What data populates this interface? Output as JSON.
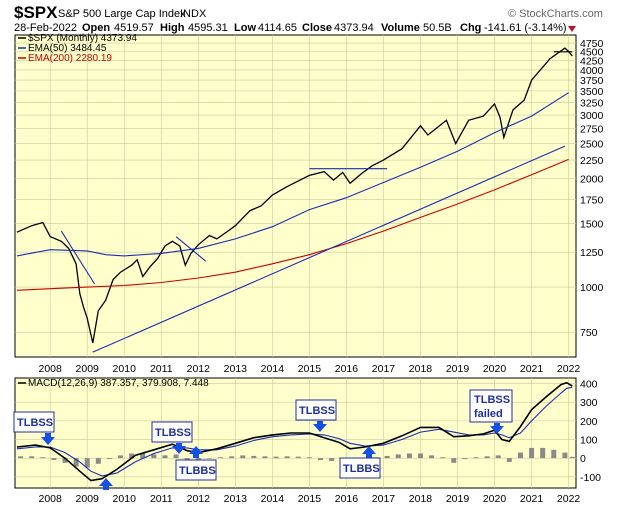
{
  "header": {
    "symbol": "$SPX",
    "name": "S&P 500 Large Cap Index",
    "exchange": "INDX",
    "date": "28-Feb-2022",
    "open_label": "Open",
    "open": "4519.57",
    "high_label": "High",
    "high": "4595.31",
    "low_label": "Low",
    "low": "4114.65",
    "close_label": "Close",
    "close": "4373.94",
    "volume_label": "Volume",
    "volume": "50.5B",
    "chg_label": "Chg",
    "chg": "-141.61 (-3.14%)",
    "watermark": "© StockCharts.com"
  },
  "chart_data": [
    {
      "type": "line",
      "legend": [
        {
          "label": "$SPX (Monthly) 4373.94",
          "color": "#000000"
        },
        {
          "label": "EMA(50) 3484.45",
          "color": "#1a2db0"
        },
        {
          "label": "EMA(200) 2280.19",
          "color": "#cc0000"
        }
      ],
      "x_ticks": [
        "2008",
        "2009",
        "2010",
        "2011",
        "2012",
        "2013",
        "2014",
        "2015",
        "2016",
        "2017",
        "2018",
        "2019",
        "2020",
        "2021",
        "2022"
      ],
      "y_ticks": [
        750,
        1000,
        1250,
        1500,
        1750,
        2000,
        2250,
        2500,
        2750,
        3000,
        3250,
        3500,
        3750,
        4000,
        4250,
        4500,
        4750
      ],
      "y_scale": "log",
      "ylim": [
        640,
        5000
      ],
      "xlim": [
        2007.05,
        2022.2
      ],
      "series": [
        {
          "name": "$SPX (Monthly)",
          "color": "#000000",
          "x": [
            2007.1,
            2007.5,
            2007.8,
            2008.0,
            2008.3,
            2008.5,
            2008.7,
            2008.8,
            2008.9,
            2009.0,
            2009.15,
            2009.3,
            2009.5,
            2009.7,
            2009.9,
            2010.2,
            2010.35,
            2010.5,
            2010.7,
            2010.9,
            2011.1,
            2011.3,
            2011.5,
            2011.65,
            2011.8,
            2012.0,
            2012.3,
            2012.5,
            2012.8,
            2013.0,
            2013.4,
            2013.7,
            2014.0,
            2014.4,
            2014.7,
            2015.0,
            2015.4,
            2015.65,
            2015.9,
            2016.1,
            2016.4,
            2016.7,
            2017.0,
            2017.5,
            2018.0,
            2018.2,
            2018.7,
            2018.95,
            2019.3,
            2019.7,
            2020.0,
            2020.15,
            2020.25,
            2020.5,
            2020.8,
            2021.0,
            2021.5,
            2021.9,
            2022.0,
            2022.1
          ],
          "values": [
            1420,
            1480,
            1510,
            1380,
            1340,
            1280,
            1160,
            960,
            880,
            820,
            700,
            860,
            920,
            1050,
            1100,
            1150,
            1190,
            1070,
            1140,
            1200,
            1300,
            1340,
            1300,
            1150,
            1240,
            1310,
            1390,
            1360,
            1430,
            1480,
            1630,
            1680,
            1800,
            1900,
            1970,
            2040,
            2090,
            1980,
            2080,
            1940,
            2060,
            2170,
            2250,
            2420,
            2800,
            2640,
            2900,
            2500,
            2900,
            2980,
            3220,
            2950,
            2600,
            3100,
            3300,
            3750,
            4300,
            4600,
            4500,
            4374
          ]
        },
        {
          "name": "EMA(50)",
          "color": "#1a2db0",
          "x": [
            2007.1,
            2008.0,
            2009.0,
            2009.5,
            2010.0,
            2011.0,
            2012.0,
            2013.0,
            2014.0,
            2015.0,
            2016.0,
            2017.0,
            2018.0,
            2019.0,
            2020.0,
            2021.0,
            2022.0
          ],
          "values": [
            1220,
            1270,
            1260,
            1230,
            1220,
            1240,
            1280,
            1360,
            1470,
            1640,
            1770,
            1950,
            2150,
            2380,
            2680,
            2980,
            3460
          ]
        },
        {
          "name": "EMA(200)",
          "color": "#cc0000",
          "x": [
            2007.1,
            2008.0,
            2009.0,
            2010.0,
            2011.0,
            2012.0,
            2013.0,
            2014.0,
            2015.0,
            2016.0,
            2017.0,
            2018.0,
            2019.0,
            2020.0,
            2021.0,
            2022.0
          ],
          "values": [
            980,
            990,
            1000,
            1010,
            1030,
            1060,
            1100,
            1160,
            1230,
            1320,
            1430,
            1560,
            1700,
            1860,
            2050,
            2260
          ]
        }
      ],
      "trendlines": [
        {
          "x": [
            2009.15,
            2021.9
          ],
          "values": [
            660,
            2460
          ],
          "color": "#1a2db0"
        },
        {
          "x": [
            2008.3,
            2009.2
          ],
          "values": [
            1430,
            1020
          ],
          "color": "#1a2db0"
        },
        {
          "x": [
            2011.4,
            2012.2
          ],
          "values": [
            1380,
            1180
          ],
          "color": "#1a2db0"
        },
        {
          "x": [
            2015.0,
            2017.1
          ],
          "values": [
            2130,
            2130
          ],
          "color": "#1a2db0"
        },
        {
          "x": [
            2021.6,
            2022.1
          ],
          "values": [
            4490,
            4490
          ],
          "color": "#000000"
        }
      ]
    },
    {
      "type": "line",
      "legend": [
        {
          "label": "MACD(12,26,9) 387.357, 379.908, 7.448",
          "color": "#000000"
        }
      ],
      "x_ticks": [
        "2008",
        "2009",
        "2010",
        "2011",
        "2012",
        "2013",
        "2014",
        "2015",
        "2016",
        "2017",
        "2018",
        "2019",
        "2020",
        "2021",
        "2022"
      ],
      "y_ticks": [
        -100,
        0,
        100,
        200,
        300,
        400
      ],
      "ylim": [
        -160,
        430
      ],
      "xlim": [
        2007.05,
        2022.2
      ],
      "series": [
        {
          "name": "MACD",
          "color": "#000000",
          "x": [
            2007.1,
            2007.6,
            2008.0,
            2008.4,
            2008.8,
            2009.1,
            2009.4,
            2009.8,
            2010.3,
            2010.8,
            2011.3,
            2011.7,
            2012.0,
            2012.5,
            2013.0,
            2013.5,
            2014.0,
            2014.5,
            2015.0,
            2015.4,
            2015.8,
            2016.1,
            2016.5,
            2017.0,
            2017.5,
            2018.0,
            2018.5,
            2018.9,
            2019.3,
            2019.7,
            2020.0,
            2020.2,
            2020.4,
            2020.7,
            2021.0,
            2021.4,
            2021.8,
            2021.95,
            2022.1
          ],
          "values": [
            60,
            70,
            55,
            0,
            -70,
            -120,
            -110,
            -60,
            15,
            45,
            75,
            40,
            30,
            50,
            80,
            110,
            125,
            135,
            135,
            110,
            85,
            50,
            60,
            80,
            120,
            165,
            165,
            115,
            120,
            130,
            150,
            100,
            90,
            170,
            260,
            330,
            395,
            405,
            387
          ]
        },
        {
          "name": "Signal",
          "color": "#1a2db0",
          "x": [
            2007.1,
            2007.6,
            2008.0,
            2008.4,
            2008.8,
            2009.1,
            2009.4,
            2009.8,
            2010.3,
            2010.8,
            2011.3,
            2011.7,
            2012.0,
            2012.5,
            2013.0,
            2013.5,
            2014.0,
            2014.5,
            2015.0,
            2015.4,
            2015.8,
            2016.1,
            2016.5,
            2017.0,
            2017.5,
            2018.0,
            2018.5,
            2018.9,
            2019.3,
            2019.7,
            2020.0,
            2020.2,
            2020.4,
            2020.7,
            2021.0,
            2021.4,
            2021.8,
            2021.95,
            2022.1
          ],
          "values": [
            50,
            60,
            60,
            30,
            -20,
            -70,
            -95,
            -80,
            -20,
            25,
            55,
            55,
            45,
            45,
            65,
            95,
            115,
            125,
            130,
            125,
            105,
            80,
            65,
            70,
            100,
            140,
            155,
            140,
            125,
            125,
            135,
            125,
            110,
            135,
            200,
            280,
            350,
            375,
            380
          ]
        },
        {
          "name": "Histogram",
          "color": "#808080",
          "x": [
            2007.2,
            2007.5,
            2007.8,
            2008.1,
            2008.4,
            2008.7,
            2009.0,
            2009.3,
            2009.6,
            2009.9,
            2010.2,
            2010.5,
            2010.8,
            2011.1,
            2011.4,
            2011.7,
            2012.0,
            2012.3,
            2012.6,
            2012.9,
            2013.2,
            2013.5,
            2013.8,
            2014.1,
            2014.4,
            2014.7,
            2015.0,
            2015.3,
            2015.6,
            2015.9,
            2016.2,
            2016.5,
            2016.8,
            2017.1,
            2017.4,
            2017.7,
            2018.0,
            2018.3,
            2018.6,
            2018.9,
            2019.2,
            2019.5,
            2019.8,
            2020.1,
            2020.4,
            2020.7,
            2021.0,
            2021.3,
            2021.6,
            2021.9,
            2022.1
          ],
          "values": [
            10,
            10,
            5,
            -10,
            -25,
            -45,
            -50,
            -30,
            -5,
            15,
            25,
            25,
            20,
            15,
            20,
            -10,
            -15,
            0,
            5,
            10,
            15,
            12,
            10,
            8,
            10,
            8,
            5,
            -10,
            -15,
            -25,
            -20,
            -5,
            5,
            12,
            20,
            25,
            25,
            15,
            5,
            -25,
            -5,
            5,
            10,
            15,
            -20,
            30,
            55,
            55,
            45,
            30,
            7
          ]
        }
      ],
      "annotations": [
        "TLBSS",
        "TLBSS",
        "TLBBS",
        "TLBSS",
        "TLBBS",
        "TLBSS failed"
      ]
    }
  ]
}
